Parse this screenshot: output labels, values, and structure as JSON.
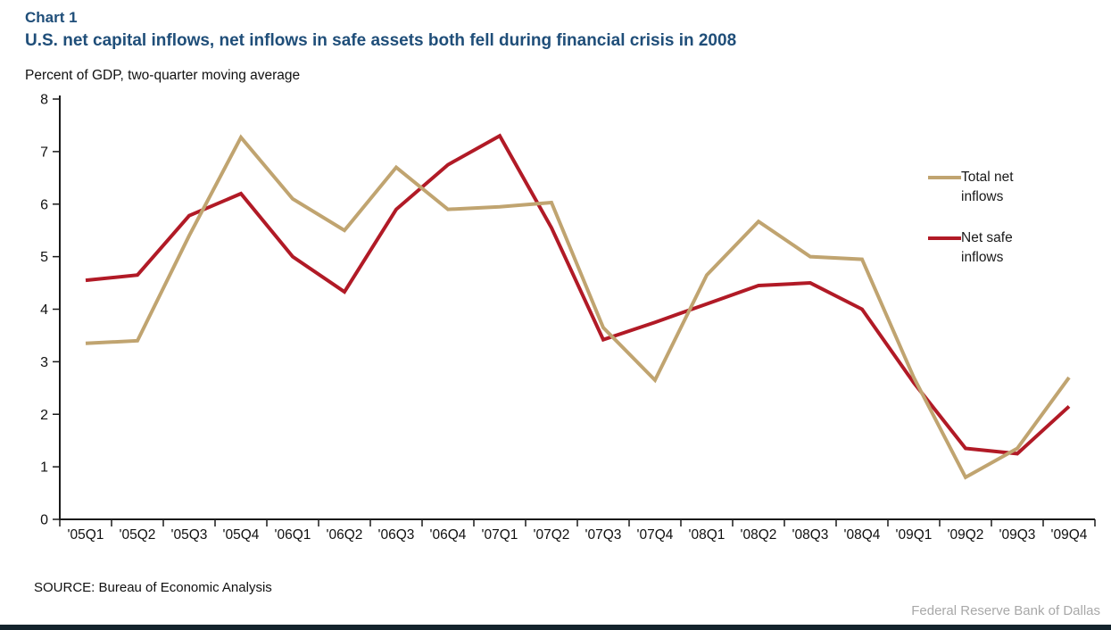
{
  "header": {
    "chart_label": "Chart 1",
    "title": "U.S. net capital inflows, net inflows in safe assets both fell during financial crisis in 2008",
    "units_note": "Percent of GDP, two-quarter moving average"
  },
  "source_note": "SOURCE: Bureau of Economic Analysis",
  "footer": {
    "attribution": "Federal Reserve Bank of Dallas"
  },
  "colors": {
    "title_blue": "#1F4E79",
    "total_line": "#C0A470",
    "safe_line": "#B11A26",
    "axis": "#1a1a1a",
    "footer_gray": "#A8A8A8",
    "footer_bar": "#13232C"
  },
  "chart_data": {
    "type": "line",
    "title": "U.S. net capital inflows, net inflows in safe assets both fell during financial crisis in 2008",
    "ylabel": "Percent of GDP, two-quarter moving average",
    "xlabel": "",
    "ylim": [
      0,
      8
    ],
    "yticks": [
      0,
      1,
      2,
      3,
      4,
      5,
      6,
      7,
      8
    ],
    "grid": false,
    "legend_position": "right",
    "categories": [
      "'05Q1",
      "'05Q2",
      "'05Q3",
      "'05Q4",
      "'06Q1",
      "'06Q2",
      "'06Q3",
      "'06Q4",
      "'07Q1",
      "'07Q2",
      "'07Q3",
      "'07Q4",
      "'08Q1",
      "'08Q2",
      "'08Q3",
      "'08Q4",
      "'09Q1",
      "'09Q2",
      "'09Q3",
      "'09Q4"
    ],
    "series": [
      {
        "name": "Total net inflows",
        "legend_lines": [
          "Total net",
          "inflows"
        ],
        "color": "#C0A470",
        "values": [
          3.35,
          3.4,
          5.4,
          7.27,
          6.1,
          5.5,
          6.7,
          5.9,
          5.95,
          6.03,
          3.65,
          2.65,
          4.65,
          5.67,
          5.0,
          4.95,
          2.7,
          0.8,
          1.35,
          2.7
        ]
      },
      {
        "name": "Net safe inflows",
        "legend_lines": [
          "Net safe",
          "inflows"
        ],
        "color": "#B11A26",
        "values": [
          4.55,
          4.65,
          5.78,
          6.2,
          5.0,
          4.33,
          5.9,
          6.75,
          7.3,
          5.55,
          3.42,
          3.75,
          4.1,
          4.45,
          4.5,
          4.0,
          2.6,
          1.35,
          1.25,
          2.15
        ]
      }
    ]
  }
}
